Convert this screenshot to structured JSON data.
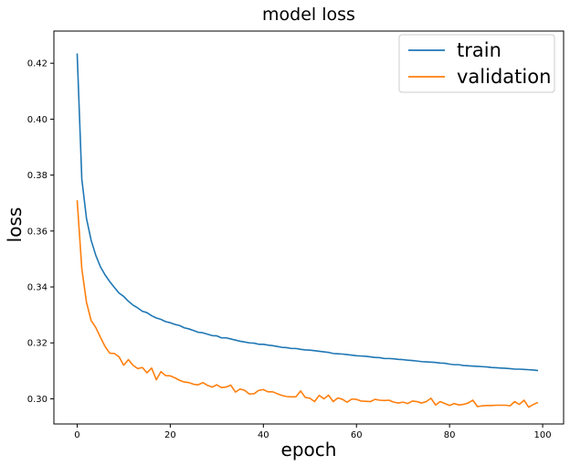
{
  "chart_data": {
    "type": "line",
    "title": "model loss",
    "xlabel": "epoch",
    "ylabel": "loss",
    "xlim": [
      -5,
      104.5
    ],
    "ylim": [
      0.291,
      0.4315
    ],
    "xticks": [
      0,
      20,
      40,
      60,
      80,
      100
    ],
    "yticks": [
      0.3,
      0.32,
      0.34,
      0.36,
      0.38,
      0.4,
      0.42
    ],
    "ytick_labels": [
      "0.30",
      "0.32",
      "0.34",
      "0.36",
      "0.38",
      "0.40",
      "0.42"
    ],
    "grid": false,
    "legend_position": "upper right",
    "series": [
      {
        "name": "train",
        "color": "#1f77b4",
        "x": [
          0,
          1,
          2,
          3,
          4,
          5,
          6,
          7,
          8,
          9,
          10,
          11,
          12,
          13,
          14,
          15,
          16,
          17,
          18,
          19,
          20,
          21,
          22,
          23,
          24,
          25,
          26,
          27,
          28,
          29,
          30,
          31,
          32,
          33,
          34,
          35,
          36,
          37,
          38,
          39,
          40,
          41,
          42,
          43,
          44,
          45,
          46,
          47,
          48,
          49,
          50,
          51,
          52,
          53,
          54,
          55,
          56,
          57,
          58,
          59,
          60,
          61,
          62,
          63,
          64,
          65,
          66,
          67,
          68,
          69,
          70,
          71,
          72,
          73,
          74,
          75,
          76,
          77,
          78,
          79,
          80,
          81,
          82,
          83,
          84,
          85,
          86,
          87,
          88,
          89,
          90,
          91,
          92,
          93,
          94,
          95,
          96,
          97,
          98,
          99
        ],
        "values": [
          0.4235,
          0.3785,
          0.3645,
          0.3567,
          0.3513,
          0.3472,
          0.3443,
          0.3419,
          0.3398,
          0.3378,
          0.3366,
          0.3349,
          0.3335,
          0.3325,
          0.3313,
          0.3308,
          0.3297,
          0.3289,
          0.3284,
          0.3276,
          0.3272,
          0.3266,
          0.3262,
          0.3254,
          0.325,
          0.3244,
          0.3238,
          0.3236,
          0.3231,
          0.3226,
          0.3225,
          0.3218,
          0.3218,
          0.3214,
          0.321,
          0.3206,
          0.3203,
          0.32,
          0.3199,
          0.3195,
          0.3195,
          0.3192,
          0.319,
          0.3187,
          0.3184,
          0.3183,
          0.318,
          0.318,
          0.3177,
          0.3175,
          0.3174,
          0.3172,
          0.317,
          0.3168,
          0.3166,
          0.3162,
          0.3161,
          0.316,
          0.3158,
          0.3156,
          0.3154,
          0.3153,
          0.3152,
          0.315,
          0.3148,
          0.3147,
          0.3144,
          0.3144,
          0.3143,
          0.3141,
          0.314,
          0.3138,
          0.3137,
          0.3135,
          0.3133,
          0.3132,
          0.3131,
          0.313,
          0.3128,
          0.3127,
          0.3124,
          0.3122,
          0.3122,
          0.3119,
          0.3118,
          0.3117,
          0.3116,
          0.3115,
          0.3114,
          0.3112,
          0.3111,
          0.311,
          0.3109,
          0.3108,
          0.3106,
          0.3106,
          0.3105,
          0.3104,
          0.3103,
          0.3101
        ]
      },
      {
        "name": "validation",
        "color": "#ff7f0e",
        "x": [
          0,
          1,
          2,
          3,
          4,
          5,
          6,
          7,
          8,
          9,
          10,
          11,
          12,
          13,
          14,
          15,
          16,
          17,
          18,
          19,
          20,
          21,
          22,
          23,
          24,
          25,
          26,
          27,
          28,
          29,
          30,
          31,
          32,
          33,
          34,
          35,
          36,
          37,
          38,
          39,
          40,
          41,
          42,
          43,
          44,
          45,
          46,
          47,
          48,
          49,
          50,
          51,
          52,
          53,
          54,
          55,
          56,
          57,
          58,
          59,
          60,
          61,
          62,
          63,
          64,
          65,
          66,
          67,
          68,
          69,
          70,
          71,
          72,
          73,
          74,
          75,
          76,
          77,
          78,
          79,
          80,
          81,
          82,
          83,
          84,
          85,
          86,
          87,
          88,
          89,
          90,
          91,
          92,
          93,
          94,
          95,
          96,
          97,
          98,
          99
        ],
        "values": [
          0.371,
          0.3465,
          0.3345,
          0.328,
          0.3255,
          0.322,
          0.3187,
          0.3163,
          0.3162,
          0.315,
          0.312,
          0.314,
          0.312,
          0.3108,
          0.3112,
          0.3093,
          0.311,
          0.3068,
          0.3097,
          0.3083,
          0.3082,
          0.3075,
          0.3066,
          0.306,
          0.3058,
          0.3052,
          0.305,
          0.3058,
          0.3048,
          0.3042,
          0.305,
          0.304,
          0.3042,
          0.3049,
          0.3024,
          0.3035,
          0.303,
          0.3017,
          0.3018,
          0.303,
          0.3033,
          0.3025,
          0.3025,
          0.3018,
          0.3012,
          0.3008,
          0.3007,
          0.3007,
          0.3028,
          0.3005,
          0.3002,
          0.299,
          0.3012,
          0.3,
          0.3013,
          0.299,
          0.3003,
          0.2998,
          0.2988,
          0.2999,
          0.2998,
          0.2992,
          0.2991,
          0.299,
          0.2998,
          0.2995,
          0.2994,
          0.2995,
          0.2988,
          0.2985,
          0.2988,
          0.2983,
          0.2992,
          0.299,
          0.2985,
          0.299,
          0.3002,
          0.2978,
          0.299,
          0.2983,
          0.2976,
          0.2983,
          0.2978,
          0.298,
          0.2985,
          0.2995,
          0.2972,
          0.2975,
          0.2976,
          0.2976,
          0.2977,
          0.2977,
          0.2977,
          0.2975,
          0.299,
          0.298,
          0.2995,
          0.297,
          0.298,
          0.2987
        ]
      }
    ]
  }
}
